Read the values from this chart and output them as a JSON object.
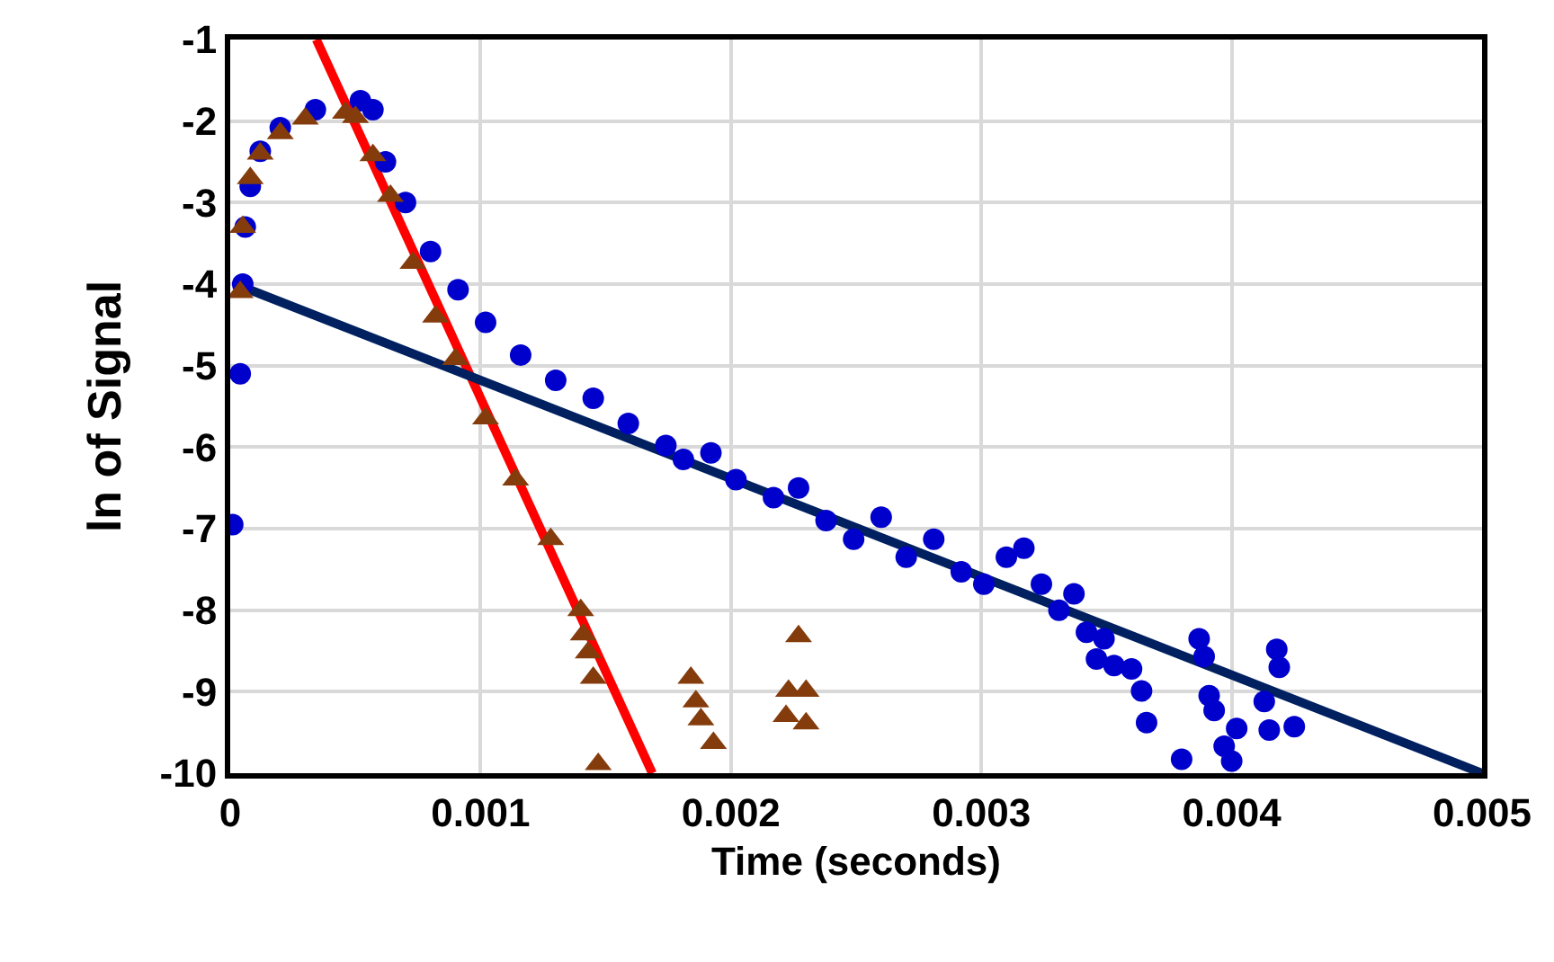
{
  "chart_data": {
    "type": "scatter",
    "xlabel": "Time (seconds)",
    "ylabel": "ln of Signal",
    "xlim": [
      0,
      0.005
    ],
    "xticks": [
      0,
      0.001,
      0.002,
      0.003,
      0.004,
      0.005
    ],
    "ylim": [
      -10,
      -1
    ],
    "yticks": [
      -1,
      -2,
      -3,
      -4,
      -5,
      -6,
      -7,
      -8,
      -9,
      -10
    ],
    "grid": true,
    "series": [
      {
        "marker": "circle",
        "color": "#0000cc",
        "x": [
          1e-05,
          4e-05,
          5e-05,
          6e-05,
          8e-05,
          0.00012,
          0.0002,
          0.00034,
          0.00052,
          0.00057,
          0.00062,
          0.0007,
          0.0008,
          0.00091,
          0.00102,
          0.00116,
          0.0013,
          0.00145,
          0.00159,
          0.00174,
          0.00181,
          0.00192,
          0.00202,
          0.00217,
          0.00227,
          0.00238,
          0.00249,
          0.0026,
          0.0027,
          0.00281,
          0.00292,
          0.00301,
          0.0031,
          0.00317,
          0.00324,
          0.00331,
          0.00337,
          0.00342,
          0.00346,
          0.00349,
          0.00353,
          0.0036,
          0.00364,
          0.00366,
          0.0038,
          0.00387,
          0.00389,
          0.00391,
          0.00393,
          0.00397,
          0.004,
          0.00402,
          0.00413,
          0.00415,
          0.00418,
          0.00419,
          0.00425
        ],
        "values": [
          -6.95,
          -5.1,
          -4.0,
          -3.3,
          -2.8,
          -2.37,
          -2.08,
          -1.86,
          -1.75,
          -1.86,
          -2.5,
          -3.0,
          -3.6,
          -4.07,
          -4.47,
          -4.87,
          -5.18,
          -5.4,
          -5.71,
          -5.98,
          -6.15,
          -6.07,
          -6.4,
          -6.62,
          -6.5,
          -6.9,
          -7.13,
          -6.86,
          -7.35,
          -7.13,
          -7.53,
          -7.68,
          -7.35,
          -7.24,
          -7.68,
          -8.0,
          -7.8,
          -8.27,
          -8.6,
          -8.35,
          -8.68,
          -8.72,
          -8.99,
          -9.38,
          -9.83,
          -8.35,
          -8.57,
          -9.05,
          -9.23,
          -9.67,
          -9.85,
          -9.45,
          -9.12,
          -9.47,
          -8.48,
          -8.7,
          -9.43
        ]
      },
      {
        "marker": "triangle",
        "color": "#843c0c",
        "x": [
          4e-05,
          5e-05,
          8e-05,
          0.00012,
          0.0002,
          0.0003,
          0.00046,
          0.0005,
          0.00057,
          0.00064,
          0.00073,
          0.00082,
          0.0009,
          0.00102,
          0.00114,
          0.00128,
          0.0014,
          0.00141,
          0.00143,
          0.00145,
          0.00147,
          0.00184,
          0.00186,
          0.00188,
          0.00193,
          0.00222,
          0.00223,
          0.00227,
          0.0023,
          0.0023
        ],
        "values": [
          -4.1,
          -3.3,
          -2.7,
          -2.4,
          -2.15,
          -1.97,
          -1.9,
          -1.95,
          -2.42,
          -2.92,
          -3.74,
          -4.4,
          -4.92,
          -5.65,
          -6.4,
          -7.13,
          -8.0,
          -8.3,
          -8.52,
          -8.83,
          -9.89,
          -8.83,
          -9.12,
          -9.34,
          -9.63,
          -9.3,
          -8.99,
          -8.32,
          -8.99,
          -9.39
        ]
      },
      {
        "type": "line",
        "marker": "none",
        "color": "#ff0000",
        "x": [
          0.000344,
          0.001686
        ],
        "values": [
          -1,
          -10
        ]
      },
      {
        "type": "line",
        "marker": "none",
        "color": "#002060",
        "x": [
          2e-05,
          0.005
        ],
        "values": [
          -4.0,
          -10
        ]
      }
    ]
  }
}
